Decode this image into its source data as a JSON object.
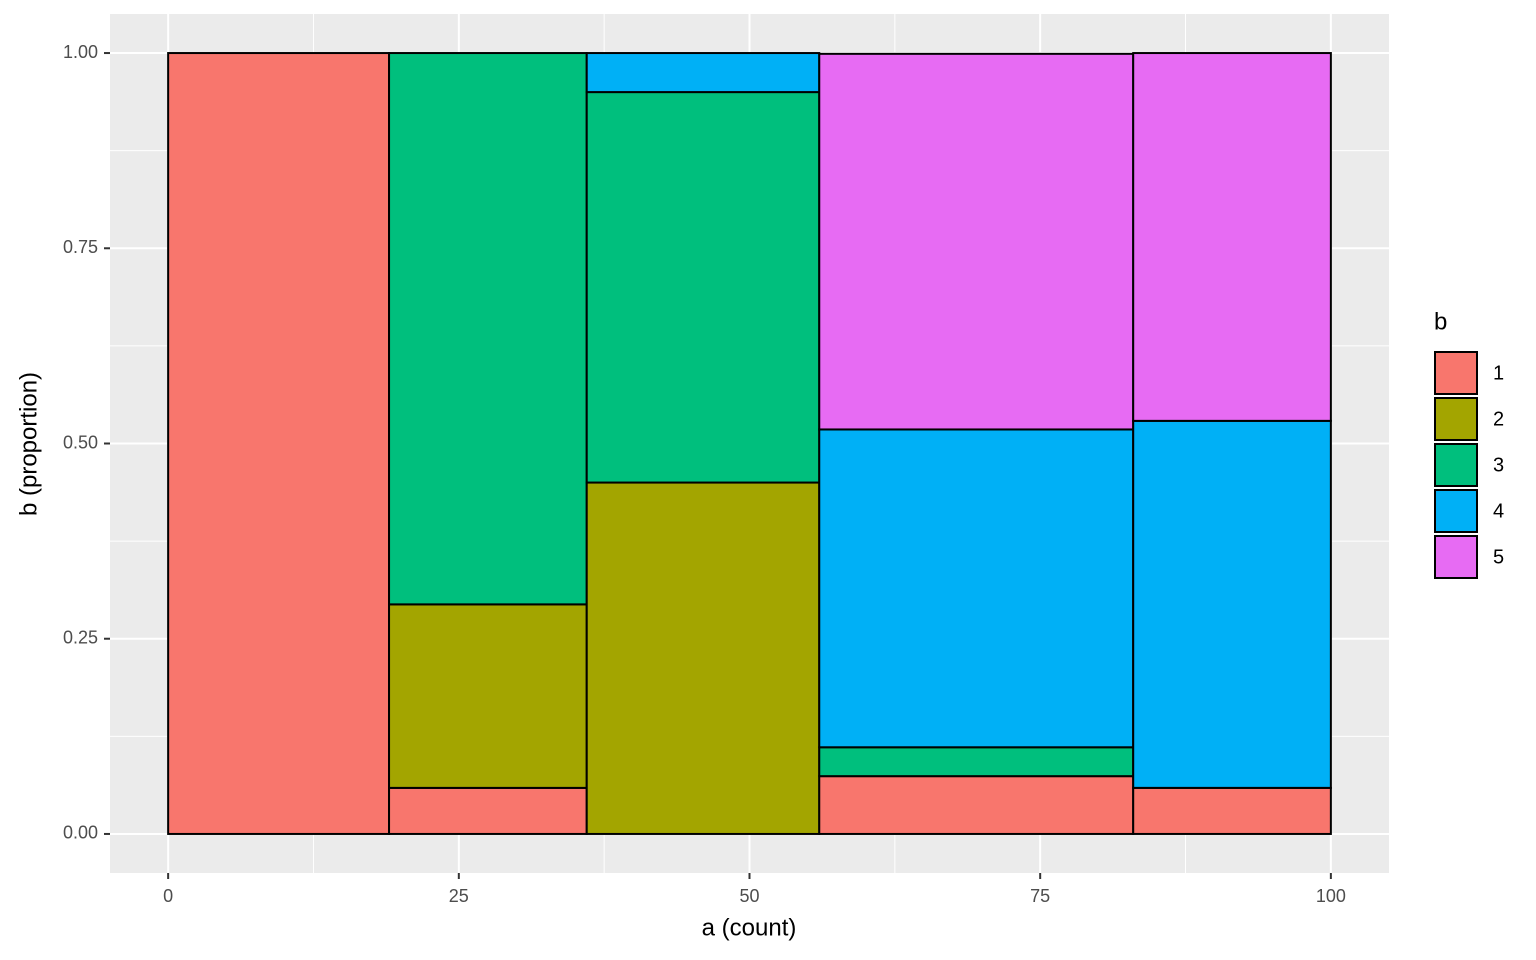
{
  "chart_data": {
    "type": "mosaic",
    "x_label": "a (count)",
    "y_label": "b (proportion)",
    "legend_title": "b",
    "widths": [
      19,
      17,
      20,
      27,
      17
    ],
    "series": [
      {
        "name": "1",
        "color": "#f8766d",
        "values": [
          1,
          0.059,
          null,
          0.074,
          0.059
        ]
      },
      {
        "name": "2",
        "color": "#a3a500",
        "values": [
          null,
          0.235,
          0.45,
          null,
          null
        ]
      },
      {
        "name": "3",
        "color": "#00bf7d",
        "values": [
          null,
          0.706,
          0.5,
          0.037,
          null
        ]
      },
      {
        "name": "4",
        "color": "#00b0f6",
        "values": [
          null,
          null,
          0.05,
          0.407,
          0.47
        ]
      },
      {
        "name": "5",
        "color": "#e76bf3",
        "values": [
          null,
          null,
          null,
          0.481,
          0.471
        ]
      }
    ],
    "xlim": [
      -5,
      105
    ],
    "xticks": [
      0,
      25,
      50,
      75,
      100
    ],
    "ylim": [
      -0.05,
      1.05
    ],
    "yticks": [
      {
        "value": 0,
        "label": "0.00"
      },
      {
        "value": 0.25,
        "label": "0.25"
      },
      {
        "value": 0.5,
        "label": "0.50"
      },
      {
        "value": 0.75,
        "label": "0.75"
      },
      {
        "value": 1,
        "label": "1.00"
      }
    ],
    "grid": true,
    "legend": "right"
  }
}
